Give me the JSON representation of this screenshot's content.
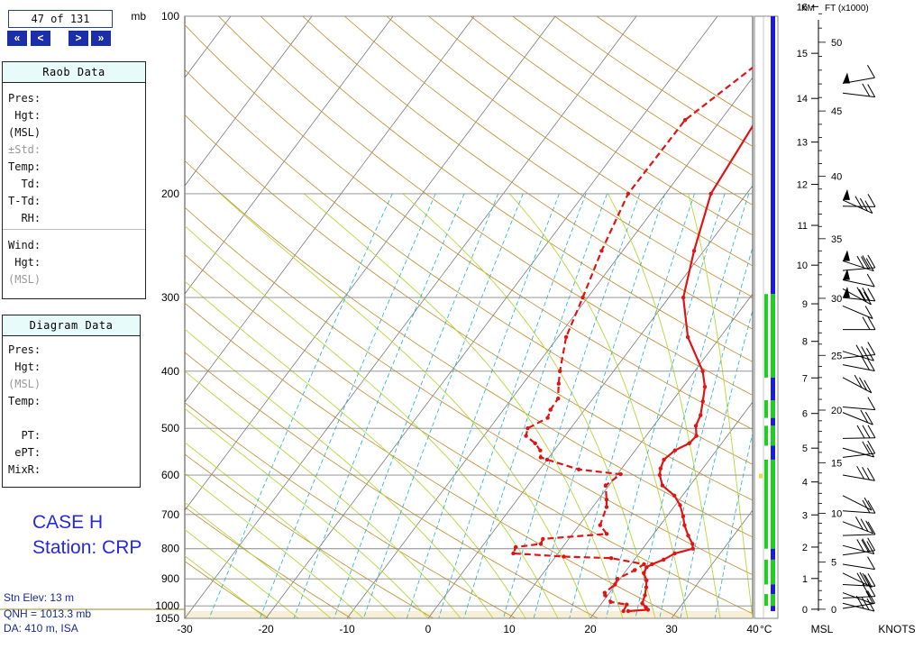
{
  "nav": {
    "counter": "47 of 131",
    "first": "«",
    "prev": "<",
    "next": ">",
    "last": "»"
  },
  "raob_panel": {
    "title": "Raob Data",
    "rows": [
      "Pres:",
      " Hgt:",
      "(MSL)",
      "±Std:",
      "Temp:",
      "  Td:",
      "T-Td:",
      "  RH:"
    ],
    "wind_rows": [
      "Wind:",
      " Hgt:",
      "(MSL)"
    ]
  },
  "diagram_panel": {
    "title": "Diagram Data",
    "rows": [
      "Pres:",
      " Hgt:",
      "(MSL)",
      "Temp:",
      "",
      "  PT:",
      " ePT:",
      "MixR:"
    ]
  },
  "case": {
    "line1": "CASE H",
    "line2": "Station: CRP"
  },
  "station": {
    "elev": "Stn Elev: 13 m",
    "qnh": "QNH = 1013.3 mb",
    "da": "DA: 410 m, ISA"
  },
  "colors": {
    "temp": "#e01414",
    "wind_ok": "#22cc22",
    "wind_bad": "#1a1ae0",
    "isotherm": "#6a6a6a",
    "dry_adiabat": "#c08a2a",
    "moist_adiabat": "#b8d63a",
    "mixing_ratio": "#22b0c8"
  },
  "chart_data": {
    "type": "line",
    "title": "",
    "y_unit": "mb",
    "x_unit": "°C",
    "x_ticks": [
      -30,
      -20,
      -10,
      0,
      10,
      20,
      30,
      40
    ],
    "p_ticks": [
      100,
      200,
      300,
      400,
      500,
      600,
      700,
      800,
      900,
      1000,
      1050
    ],
    "km_ticks": [
      0,
      1,
      2,
      3,
      4,
      5,
      6,
      7,
      8,
      9,
      10,
      11,
      12,
      13,
      14,
      15,
      16
    ],
    "ft_ticks": [
      0,
      5,
      10,
      15,
      20,
      25,
      30,
      35,
      40,
      45,
      50
    ],
    "km_label": "KM",
    "ft_label": "FT (x1000)",
    "msl_label": "MSL",
    "knots_label": "KNOTS",
    "xlim": [
      -30,
      40
    ],
    "plim": [
      100,
      1050
    ],
    "temperature": [
      [
        1021,
        24
      ],
      [
        1015,
        26.3
      ],
      [
        1005,
        25.8
      ],
      [
        990,
        25
      ],
      [
        960,
        24.6
      ],
      [
        930,
        24
      ],
      [
        905,
        23.4
      ],
      [
        880,
        22.4
      ],
      [
        860,
        22.2
      ],
      [
        850,
        22.6
      ],
      [
        835,
        23.6
      ],
      [
        815,
        24.4
      ],
      [
        800,
        26.2
      ],
      [
        785,
        25.7
      ],
      [
        760,
        24.4
      ],
      [
        730,
        23
      ],
      [
        705,
        22
      ],
      [
        675,
        20.6
      ],
      [
        650,
        19
      ],
      [
        625,
        16.6
      ],
      [
        600,
        15.3
      ],
      [
        585,
        14.8
      ],
      [
        565,
        14.4
      ],
      [
        545,
        14.9
      ],
      [
        530,
        16
      ],
      [
        515,
        16.2
      ],
      [
        495,
        15.2
      ],
      [
        475,
        14.8
      ],
      [
        450,
        13.8
      ],
      [
        425,
        12.7
      ],
      [
        400,
        11
      ],
      [
        350,
        6
      ],
      [
        300,
        1.8
      ],
      [
        250,
        -1.2
      ],
      [
        200,
        -4.4
      ],
      [
        150,
        -5.6
      ],
      [
        100,
        0.5
      ]
    ],
    "dewpoint": [
      [
        1021,
        23.4
      ],
      [
        995,
        23.2
      ],
      [
        985,
        21
      ],
      [
        960,
        19.7
      ],
      [
        950,
        19.4
      ],
      [
        920,
        19.9
      ],
      [
        900,
        19.7
      ],
      [
        870,
        21
      ],
      [
        850,
        21.6
      ],
      [
        830,
        17
      ],
      [
        825,
        11
      ],
      [
        815,
        4.5
      ],
      [
        795,
        4.2
      ],
      [
        785,
        7
      ],
      [
        770,
        6.8
      ],
      [
        755,
        14.2
      ],
      [
        730,
        12.6
      ],
      [
        680,
        11.7
      ],
      [
        660,
        11
      ],
      [
        625,
        9.6
      ],
      [
        598,
        10.4
      ],
      [
        587,
        4.8
      ],
      [
        565,
        0
      ],
      [
        560,
        -1
      ],
      [
        545,
        -1.7
      ],
      [
        530,
        -3
      ],
      [
        515,
        -4.8
      ],
      [
        500,
        -5.3
      ],
      [
        480,
        -3.8
      ],
      [
        465,
        -4.2
      ],
      [
        445,
        -4.3
      ],
      [
        420,
        -5.6
      ],
      [
        400,
        -6.6
      ],
      [
        350,
        -9
      ],
      [
        300,
        -10.6
      ],
      [
        250,
        -12.6
      ],
      [
        200,
        -14.6
      ],
      [
        150,
        -14.4
      ],
      [
        100,
        -7.5
      ]
    ],
    "wind_bar": [
      {
        "range": [
          100,
          296
        ],
        "state": "missing"
      },
      {
        "range": [
          296,
          410
        ],
        "state": "good"
      },
      {
        "range": [
          410,
          448
        ],
        "state": "missing"
      },
      {
        "range": [
          448,
          480
        ],
        "state": "good"
      },
      {
        "range": [
          480,
          495
        ],
        "state": "missing"
      },
      {
        "range": [
          495,
          535
        ],
        "state": "good"
      },
      {
        "range": [
          535,
          565
        ],
        "state": "missing"
      },
      {
        "range": [
          565,
          800
        ],
        "state": "good"
      },
      {
        "range": [
          800,
          835
        ],
        "state": "missing"
      },
      {
        "range": [
          835,
          920
        ],
        "state": "good"
      },
      {
        "range": [
          920,
          955
        ],
        "state": "missing"
      },
      {
        "range": [
          955,
          1000
        ],
        "state": "good"
      },
      {
        "range": [
          1000,
          1021
        ],
        "state": "missing"
      }
    ]
  }
}
